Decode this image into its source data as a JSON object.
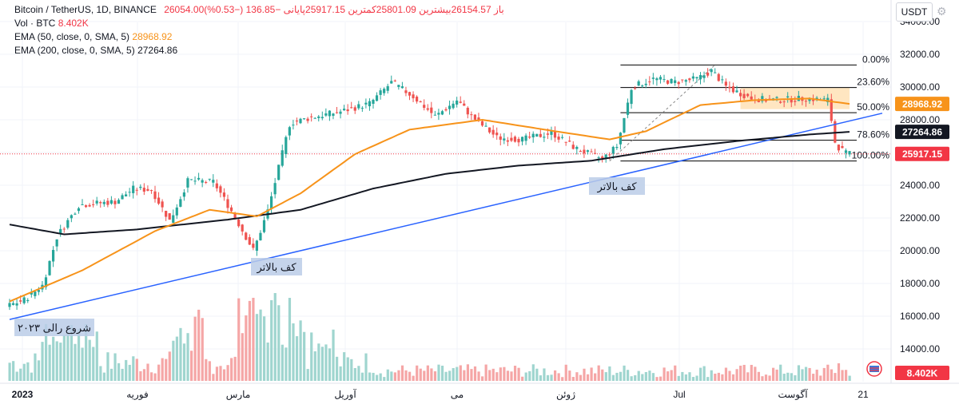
{
  "legend": {
    "title": "Bitcoin / TetherUS, 1D, BINANCE",
    "ohlc": "26054.00باز 26154.57بیشترین 25801.09کمترین 25917.15پایانی −136.85 (−0.53%)",
    "vol_label": "Vol · BTC",
    "vol_value": "8.402K",
    "ema50_label": "EMA (50, close, 0, SMA, 5)",
    "ema50_value": "28968.92",
    "ema200_label": "EMA (200, close, 0, SMA, 5)",
    "ema200_value": "27264.86"
  },
  "currency_button": "USDT",
  "annotations": {
    "higher_low_1": "کف بالاتر",
    "higher_low_2": "کف بالاتر",
    "rally_start": "شروع رالی ۲۰۲۳"
  },
  "fib_levels": [
    {
      "label": "0.00%",
      "price": 31350
    },
    {
      "label": "23.60%",
      "price": 29970
    },
    {
      "label": "50.00%",
      "price": 28430
    },
    {
      "label": "78.60%",
      "price": 26750
    },
    {
      "label": "100.00%",
      "price": 25480
    }
  ],
  "price_badges": [
    {
      "value": "28968.92",
      "price": 28968.92,
      "color": "#f7931a"
    },
    {
      "value": "27264.86",
      "price": 27264.86,
      "color": "#131722"
    },
    {
      "value": "25917.15",
      "price": 25917.15,
      "color": "#f23645"
    },
    {
      "value": "8.402K",
      "price": null,
      "color": "#f23645"
    }
  ],
  "colors": {
    "up": "#26a69a",
    "down": "#ef5350",
    "ema50": "#f7931a",
    "ema200": "#131722",
    "trendline": "#2962ff",
    "fib_zone": "#ffe0b2"
  },
  "chart_data": {
    "type": "candlestick",
    "symbol": "BTCUSDT",
    "interval": "1D",
    "y_axis_ticks": [
      14000,
      16000,
      18000,
      20000,
      22000,
      24000,
      26000,
      28000,
      30000,
      32000,
      34000
    ],
    "ylim": [
      12600,
      35000
    ],
    "x_axis_labels": [
      "2023",
      "فوریه",
      "مارس",
      "آوریل",
      "می",
      "ژوئن",
      "Jul",
      "آگوست",
      "21"
    ],
    "price_anchors": [
      {
        "day": 0,
        "price": 16600
      },
      {
        "day": 5,
        "price": 17000
      },
      {
        "day": 10,
        "price": 17900
      },
      {
        "day": 14,
        "price": 20900
      },
      {
        "day": 20,
        "price": 22800
      },
      {
        "day": 30,
        "price": 23000
      },
      {
        "day": 35,
        "price": 23800
      },
      {
        "day": 40,
        "price": 23700
      },
      {
        "day": 45,
        "price": 21800
      },
      {
        "day": 50,
        "price": 24300
      },
      {
        "day": 57,
        "price": 24200
      },
      {
        "day": 62,
        "price": 22400
      },
      {
        "day": 68,
        "price": 20000
      },
      {
        "day": 72,
        "price": 22500
      },
      {
        "day": 78,
        "price": 27800
      },
      {
        "day": 85,
        "price": 28200
      },
      {
        "day": 92,
        "price": 28500
      },
      {
        "day": 100,
        "price": 29000
      },
      {
        "day": 106,
        "price": 30300
      },
      {
        "day": 112,
        "price": 29400
      },
      {
        "day": 118,
        "price": 28200
      },
      {
        "day": 124,
        "price": 29200
      },
      {
        "day": 128,
        "price": 28200
      },
      {
        "day": 135,
        "price": 26900
      },
      {
        "day": 142,
        "price": 26800
      },
      {
        "day": 150,
        "price": 27200
      },
      {
        "day": 157,
        "price": 26200
      },
      {
        "day": 164,
        "price": 25600
      },
      {
        "day": 168,
        "price": 26400
      },
      {
        "day": 172,
        "price": 30000
      },
      {
        "day": 178,
        "price": 30500
      },
      {
        "day": 184,
        "price": 30300
      },
      {
        "day": 190,
        "price": 30500
      },
      {
        "day": 194,
        "price": 31000
      },
      {
        "day": 198,
        "price": 30000
      },
      {
        "day": 205,
        "price": 29300
      },
      {
        "day": 212,
        "price": 29200
      },
      {
        "day": 220,
        "price": 29300
      },
      {
        "day": 226,
        "price": 29200
      },
      {
        "day": 228,
        "price": 26500
      },
      {
        "day": 231,
        "price": 25917
      }
    ],
    "ema50_anchors": [
      {
        "day": 0,
        "price": 16900
      },
      {
        "day": 20,
        "price": 18800
      },
      {
        "day": 40,
        "price": 21200
      },
      {
        "day": 55,
        "price": 22500
      },
      {
        "day": 68,
        "price": 22100
      },
      {
        "day": 80,
        "price": 23500
      },
      {
        "day": 95,
        "price": 25900
      },
      {
        "day": 110,
        "price": 27400
      },
      {
        "day": 130,
        "price": 28000
      },
      {
        "day": 150,
        "price": 27300
      },
      {
        "day": 165,
        "price": 26800
      },
      {
        "day": 175,
        "price": 27300
      },
      {
        "day": 190,
        "price": 28900
      },
      {
        "day": 205,
        "price": 29200
      },
      {
        "day": 220,
        "price": 29300
      },
      {
        "day": 231,
        "price": 28968.92
      }
    ],
    "ema200_anchors": [
      {
        "day": 0,
        "price": 21600
      },
      {
        "day": 15,
        "price": 21000
      },
      {
        "day": 35,
        "price": 21300
      },
      {
        "day": 60,
        "price": 21900
      },
      {
        "day": 80,
        "price": 22500
      },
      {
        "day": 100,
        "price": 23800
      },
      {
        "day": 120,
        "price": 24700
      },
      {
        "day": 140,
        "price": 25200
      },
      {
        "day": 160,
        "price": 25500
      },
      {
        "day": 180,
        "price": 26200
      },
      {
        "day": 200,
        "price": 26700
      },
      {
        "day": 220,
        "price": 27100
      },
      {
        "day": 231,
        "price": 27264.86
      }
    ],
    "trendline": [
      {
        "day": 0,
        "price": 15800
      },
      {
        "day": 240,
        "price": 28400
      }
    ],
    "last_price": 25917.15,
    "volume_unit": "K BTC",
    "last_volume": 8.402
  }
}
